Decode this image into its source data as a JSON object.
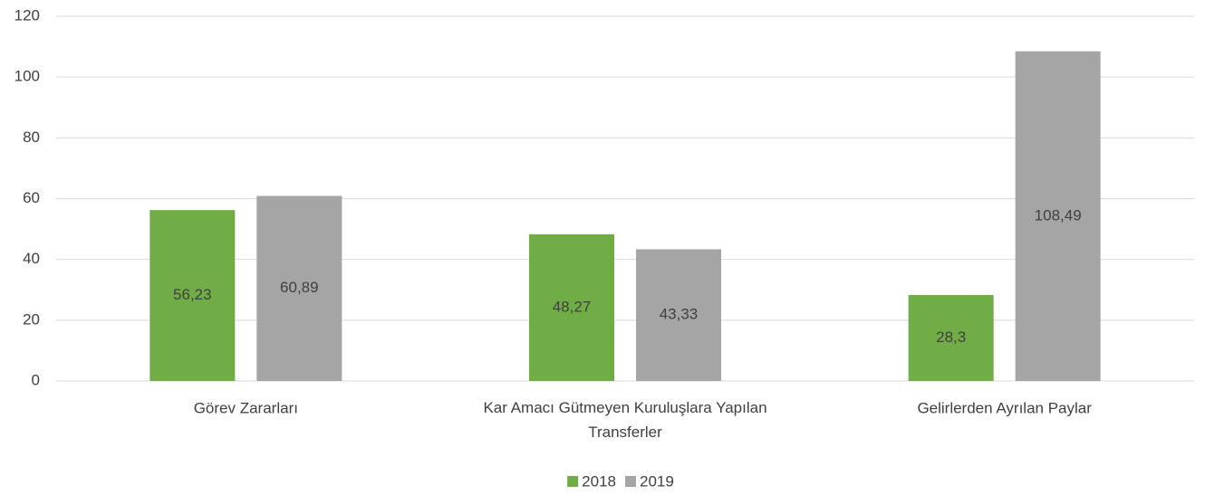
{
  "chart_data": {
    "type": "bar",
    "categories": [
      "Görev Zararları",
      "Kar Amacı Gütmeyen Kuruluşlara Yapılan Transferler",
      "Gelirlerden Ayrılan Paylar"
    ],
    "series": [
      {
        "name": "2018",
        "color": "#70ad47",
        "values": [
          56.23,
          48.27,
          28.3
        ],
        "value_labels": [
          "56,23",
          "48,27",
          "28,3"
        ]
      },
      {
        "name": "2019",
        "color": "#a5a5a5",
        "values": [
          60.89,
          43.33,
          108.49
        ],
        "value_labels": [
          "60,89",
          "43,33",
          "108,49"
        ]
      }
    ],
    "ylim": [
      0,
      120
    ],
    "yticks": [
      0,
      20,
      40,
      60,
      80,
      100,
      120
    ],
    "grid": true,
    "legend": "bottom"
  }
}
